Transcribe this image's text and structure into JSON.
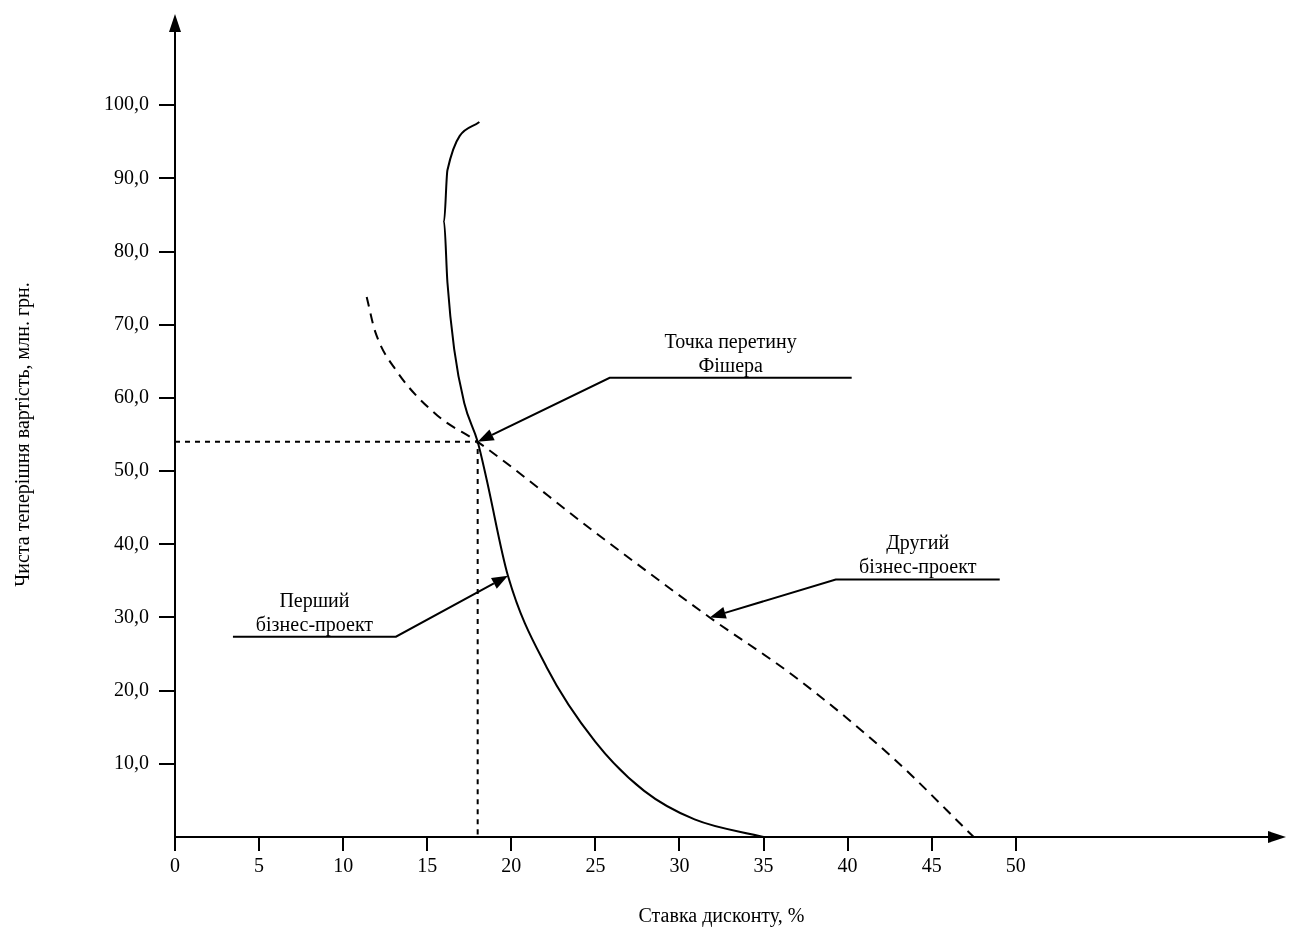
{
  "chart_data": {
    "type": "line",
    "xlabel": "Ставка дисконту, %",
    "ylabel": "Чиста теперішня вартість, млн. грн.",
    "xlim": [
      0,
      65
    ],
    "ylim": [
      0,
      110
    ],
    "xticks": [
      0,
      5,
      10,
      15,
      20,
      25,
      30,
      35,
      40,
      45,
      50
    ],
    "yticks": [
      {
        "value": 10,
        "label": "10,0"
      },
      {
        "value": 20,
        "label": "20,0"
      },
      {
        "value": 30,
        "label": "30,0"
      },
      {
        "value": 40,
        "label": "40,0"
      },
      {
        "value": 50,
        "label": "50,0"
      },
      {
        "value": 60,
        "label": "60,0"
      },
      {
        "value": 70,
        "label": "70,0"
      },
      {
        "value": 80,
        "label": "80,0"
      },
      {
        "value": 90,
        "label": "90,0"
      },
      {
        "value": 100,
        "label": "100,0"
      }
    ],
    "grid": false,
    "legend": false,
    "marker": "none",
    "series": [
      {
        "color": "#000000",
        "line_style": "solid",
        "x": [
          18.1,
          16.2,
          16.0,
          16.2,
          16.6,
          17.2,
          18,
          18.5,
          19.8,
          22.1,
          25.0,
          27.9,
          30.9,
          35
        ],
        "values": [
          97.7,
          91.1,
          84.1,
          75.8,
          66.7,
          59.3,
          54,
          49.2,
          35.7,
          23.2,
          13.0,
          6.3,
          2.4,
          0
        ]
      },
      {
        "color": "#000000",
        "line_style": "dashed",
        "x": [
          11.4,
          11.9,
          13.2,
          15.6,
          18,
          25,
          31.8,
          36.8,
          42.6,
          47.5
        ],
        "values": [
          73.8,
          69.1,
          63.6,
          57.6,
          54,
          41.6,
          30,
          22,
          11,
          0
        ]
      },
      {
        "color": "#000000",
        "line_style": "dotted",
        "x": [
          0,
          18,
          18
        ],
        "values": [
          54,
          54,
          0
        ]
      }
    ],
    "annotations": [
      "Точка перетину\nФішера",
      "Перший\nбізнес-проект",
      "Другий\nбізнес-проект"
    ]
  }
}
